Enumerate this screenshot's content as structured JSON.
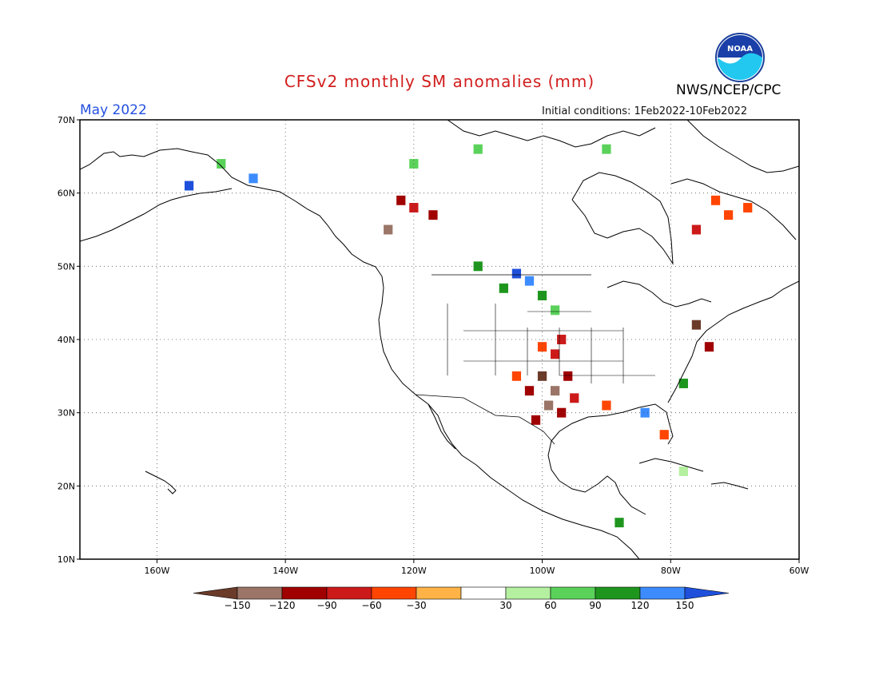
{
  "title": "CFSv2 monthly SM anomalies (mm)",
  "agency": "NWS/NCEP/CPC",
  "logo_text": "NOAA",
  "valid_month": "May 2022",
  "initial_conditions": "Initial conditions: 1Feb2022-10Feb2022",
  "map": {
    "lon_range": [
      -172,
      -60
    ],
    "lat_range": [
      10,
      70
    ],
    "lat_ticks": [
      {
        "value": 70,
        "label": "70N"
      },
      {
        "value": 60,
        "label": "60N"
      },
      {
        "value": 50,
        "label": "50N"
      },
      {
        "value": 40,
        "label": "40N"
      },
      {
        "value": 30,
        "label": "30N"
      },
      {
        "value": 20,
        "label": "20N"
      },
      {
        "value": 10,
        "label": "10N"
      }
    ],
    "lon_ticks": [
      {
        "value": -160,
        "label": "160W"
      },
      {
        "value": -140,
        "label": "140W"
      },
      {
        "value": -120,
        "label": "120W"
      },
      {
        "value": -100,
        "label": "100W"
      },
      {
        "value": -80,
        "label": "80W"
      },
      {
        "value": -60,
        "label": "60W"
      }
    ],
    "grid": "dotted",
    "coastline_color": "#000000"
  },
  "colorbar": {
    "labels": [
      "-150",
      "-120",
      "-90",
      "-60",
      "-30",
      "30",
      "60",
      "90",
      "120",
      "150"
    ],
    "colors": [
      "#6b3b2a",
      "#9a7568",
      "#a00000",
      "#cc1a1a",
      "#ff4500",
      "#ffb347",
      "#ffffff",
      "#b4f0a0",
      "#5ad25a",
      "#1e961e",
      "#3c8cff",
      "#1e50dc"
    ]
  },
  "anomaly_cells": [
    {
      "lon": -100,
      "lat": 35,
      "cat": "-150"
    },
    {
      "lon": -98,
      "lat": 33,
      "cat": "-120"
    },
    {
      "lon": -99,
      "lat": 31,
      "cat": "-120"
    },
    {
      "lon": -97,
      "lat": 30,
      "cat": "-90"
    },
    {
      "lon": -98,
      "lat": 38,
      "cat": "-60"
    },
    {
      "lon": -97,
      "lat": 40,
      "cat": "-60"
    },
    {
      "lon": -101,
      "lat": 29,
      "cat": "-90"
    },
    {
      "lon": -95,
      "lat": 32,
      "cat": "-60"
    },
    {
      "lon": -96,
      "lat": 35,
      "cat": "-90"
    },
    {
      "lon": -100,
      "lat": 39,
      "cat": "-30"
    },
    {
      "lon": -102,
      "lat": 33,
      "cat": "-90"
    },
    {
      "lon": -104,
      "lat": 35,
      "cat": "-30"
    },
    {
      "lon": -122,
      "lat": 59,
      "cat": "-90"
    },
    {
      "lon": -117,
      "lat": 57,
      "cat": "-90"
    },
    {
      "lon": -120,
      "lat": 58,
      "cat": "-60"
    },
    {
      "lon": -124,
      "lat": 55,
      "cat": "-120"
    },
    {
      "lon": -73,
      "lat": 59,
      "cat": "-30"
    },
    {
      "lon": -71,
      "lat": 57,
      "cat": "-30"
    },
    {
      "lon": -76,
      "lat": 55,
      "cat": "-60"
    },
    {
      "lon": -68,
      "lat": 58,
      "cat": "-30"
    },
    {
      "lon": -78,
      "lat": 22,
      "cat": "30"
    },
    {
      "lon": -104,
      "lat": 49,
      "cat": "150"
    },
    {
      "lon": -102,
      "lat": 48,
      "cat": "120"
    },
    {
      "lon": -106,
      "lat": 47,
      "cat": "90"
    },
    {
      "lon": -100,
      "lat": 46,
      "cat": "90"
    },
    {
      "lon": -98,
      "lat": 44,
      "cat": "60"
    },
    {
      "lon": -110,
      "lat": 50,
      "cat": "90"
    },
    {
      "lon": -120,
      "lat": 64,
      "cat": "60"
    },
    {
      "lon": -110,
      "lat": 66,
      "cat": "60"
    },
    {
      "lon": -90,
      "lat": 66,
      "cat": "60"
    },
    {
      "lon": -150,
      "lat": 64,
      "cat": "60"
    },
    {
      "lon": -145,
      "lat": 62,
      "cat": "120"
    },
    {
      "lon": -155,
      "lat": 61,
      "cat": "150"
    },
    {
      "lon": -88,
      "lat": 15,
      "cat": "90"
    },
    {
      "lon": -84,
      "lat": 30,
      "cat": "120"
    },
    {
      "lon": -81,
      "lat": 27,
      "cat": "-30"
    },
    {
      "lon": -78,
      "lat": 34,
      "cat": "90"
    },
    {
      "lon": -90,
      "lat": 31,
      "cat": "-30"
    },
    {
      "lon": -76,
      "lat": 42,
      "cat": "-150"
    },
    {
      "lon": -74,
      "lat": 39,
      "cat": "-90"
    }
  ]
}
